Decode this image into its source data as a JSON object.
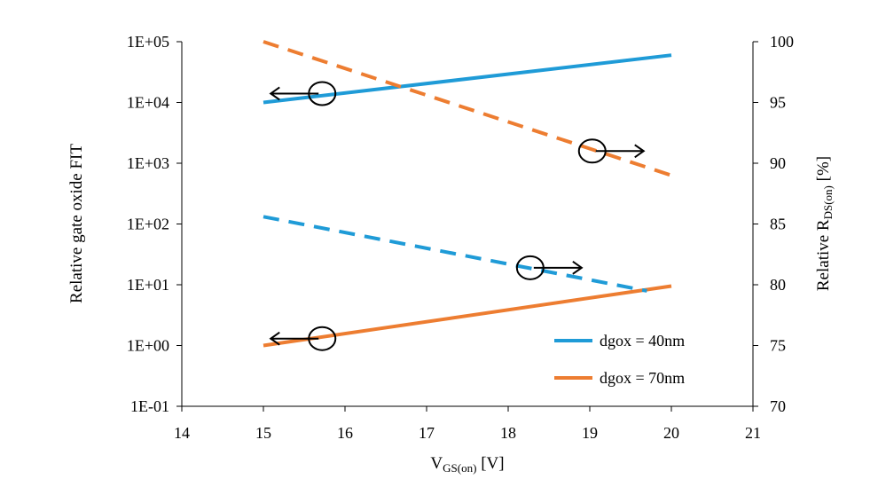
{
  "chart_data": {
    "type": "line",
    "x_axis": {
      "label_main": "V",
      "label_sub": "GS(on)",
      "label_unit": " [V]",
      "range": [
        14,
        21
      ],
      "ticks": [
        "14",
        "15",
        "16",
        "17",
        "18",
        "19",
        "20",
        "21"
      ]
    },
    "y_axis_left": {
      "label": "Relative  gate oxide  FIT",
      "scale": "log",
      "range": [
        0.1,
        100000
      ],
      "ticks": [
        {
          "value": 0.1,
          "label": "1E-01"
        },
        {
          "value": 1,
          "label": "1E+00"
        },
        {
          "value": 10,
          "label": "1E+01"
        },
        {
          "value": 100,
          "label": "1E+02"
        },
        {
          "value": 1000,
          "label": "1E+03"
        },
        {
          "value": 10000,
          "label": "1E+04"
        },
        {
          "value": 100000,
          "label": "1E+05"
        }
      ]
    },
    "y_axis_right": {
      "label_main": "Relative  R",
      "label_sub": "DS(on)",
      "label_unit": " [%]",
      "scale": "linear",
      "range": [
        70,
        100
      ],
      "ticks": [
        "70",
        "75",
        "80",
        "85",
        "90",
        "95",
        "100"
      ]
    },
    "series": [
      {
        "name": "dgox = 40nm",
        "axis": "left",
        "style": "solid",
        "color": "#1f9bd7",
        "x": [
          15,
          20
        ],
        "y": [
          10000,
          60000
        ]
      },
      {
        "name": "dgox = 70nm",
        "axis": "left",
        "style": "solid",
        "color": "#ed7d31",
        "x": [
          15,
          20
        ],
        "y": [
          1,
          9.5
        ]
      },
      {
        "name": "dgox = 40nm",
        "axis": "right",
        "style": "dashed",
        "color": "#1f9bd7",
        "x": [
          15,
          19.7
        ],
        "y": [
          85.6,
          79.5
        ]
      },
      {
        "name": "dgox = 70nm",
        "axis": "right",
        "style": "dashed",
        "color": "#ed7d31",
        "x": [
          15,
          20
        ],
        "y": [
          100,
          89
        ]
      }
    ],
    "annotations": [
      {
        "type": "circle-arrow",
        "direction": "left",
        "cx": 15.72,
        "cy": 14000,
        "axis": "left"
      },
      {
        "type": "circle-arrow",
        "direction": "left",
        "cx": 15.72,
        "cy": 1.3,
        "axis": "left"
      },
      {
        "type": "circle-arrow",
        "direction": "right",
        "cx": 19.03,
        "cy": 91,
        "axis": "right"
      },
      {
        "type": "circle-arrow",
        "direction": "right",
        "cx": 18.27,
        "cy": 81.4,
        "axis": "right"
      }
    ],
    "legend": {
      "placement": "bottom-right",
      "entries": [
        {
          "label": "dgox = 40nm",
          "color": "#1f9bd7"
        },
        {
          "label": "dgox = 70nm",
          "color": "#ed7d31"
        }
      ]
    },
    "grid": false
  }
}
